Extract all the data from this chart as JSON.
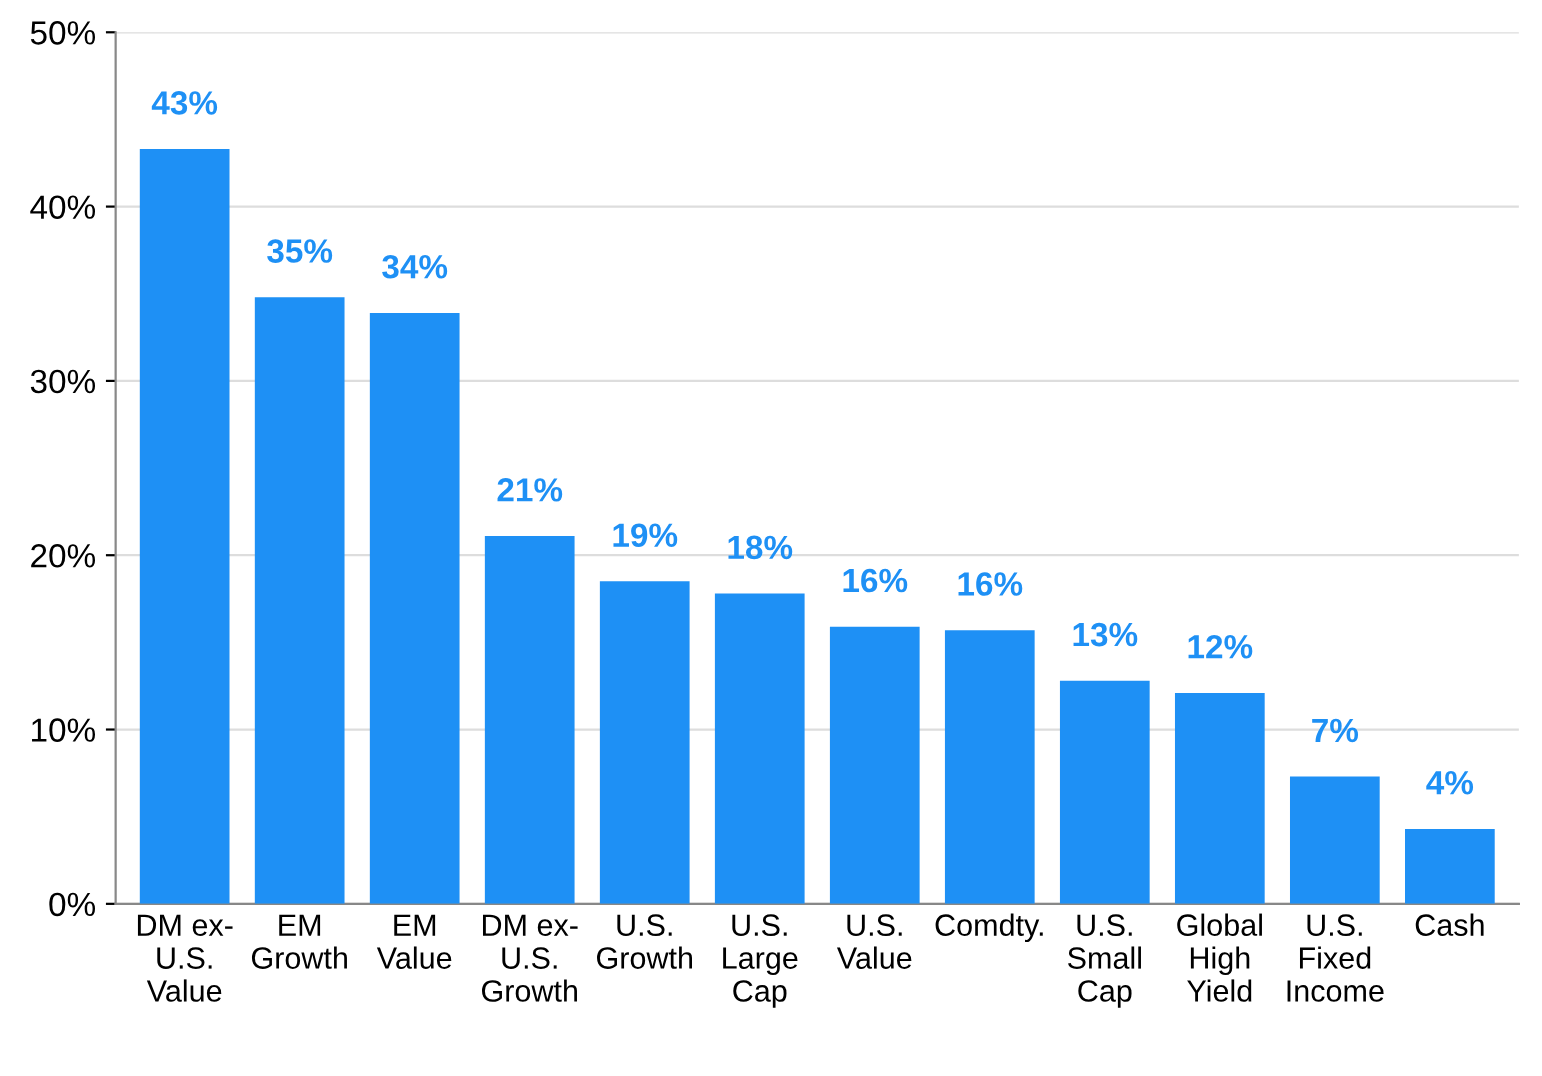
{
  "chart_data": {
    "type": "bar",
    "categories": [
      "DM ex-\nU.S.\nValue",
      "EM\nGrowth",
      "EM\nValue",
      "DM ex-\nU.S.\nGrowth",
      "U.S.\nGrowth",
      "U.S.\nLarge\nCap",
      "U.S.\nValue",
      "Comdty.",
      "U.S.\nSmall\nCap",
      "Global\nHigh\nYield",
      "U.S.\nFixed\nIncome",
      "Cash"
    ],
    "values": [
      43.3,
      34.8,
      33.9,
      21.1,
      18.5,
      17.8,
      15.9,
      15.7,
      12.8,
      12.1,
      7.3,
      4.3
    ],
    "value_labels": [
      "43%",
      "35%",
      "34%",
      "21%",
      "19%",
      "18%",
      "16%",
      "16%",
      "13%",
      "12%",
      "7%",
      "4%"
    ],
    "color": "#1e90f5",
    "ylim": [
      0,
      50
    ],
    "yticks": [
      {
        "value": 0,
        "label": "0%"
      },
      {
        "value": 10,
        "label": "10%"
      },
      {
        "value": 20,
        "label": "20%"
      },
      {
        "value": 30,
        "label": "30%"
      },
      {
        "value": 40,
        "label": "40%"
      },
      {
        "value": 50,
        "label": "50%"
      }
    ],
    "grid": "y"
  }
}
